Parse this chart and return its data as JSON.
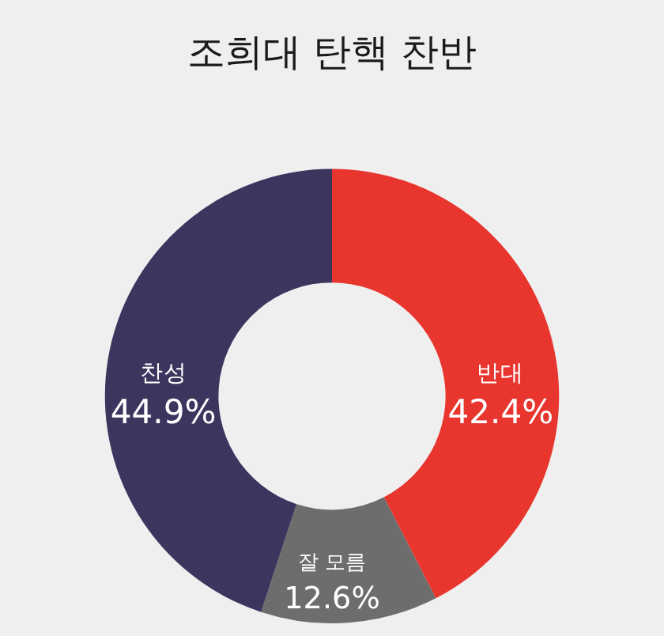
{
  "chart_data": {
    "type": "donut",
    "title": "조희대 탄핵 찬반",
    "categories": [
      "반대",
      "잘 모름",
      "찬성"
    ],
    "values": [
      42.4,
      12.6,
      44.9
    ],
    "value_labels": [
      "42.4%",
      "12.6%",
      "44.9%"
    ],
    "colors": [
      "#e8362f",
      "#6d6d6d",
      "#3b365e"
    ],
    "legend": false
  }
}
